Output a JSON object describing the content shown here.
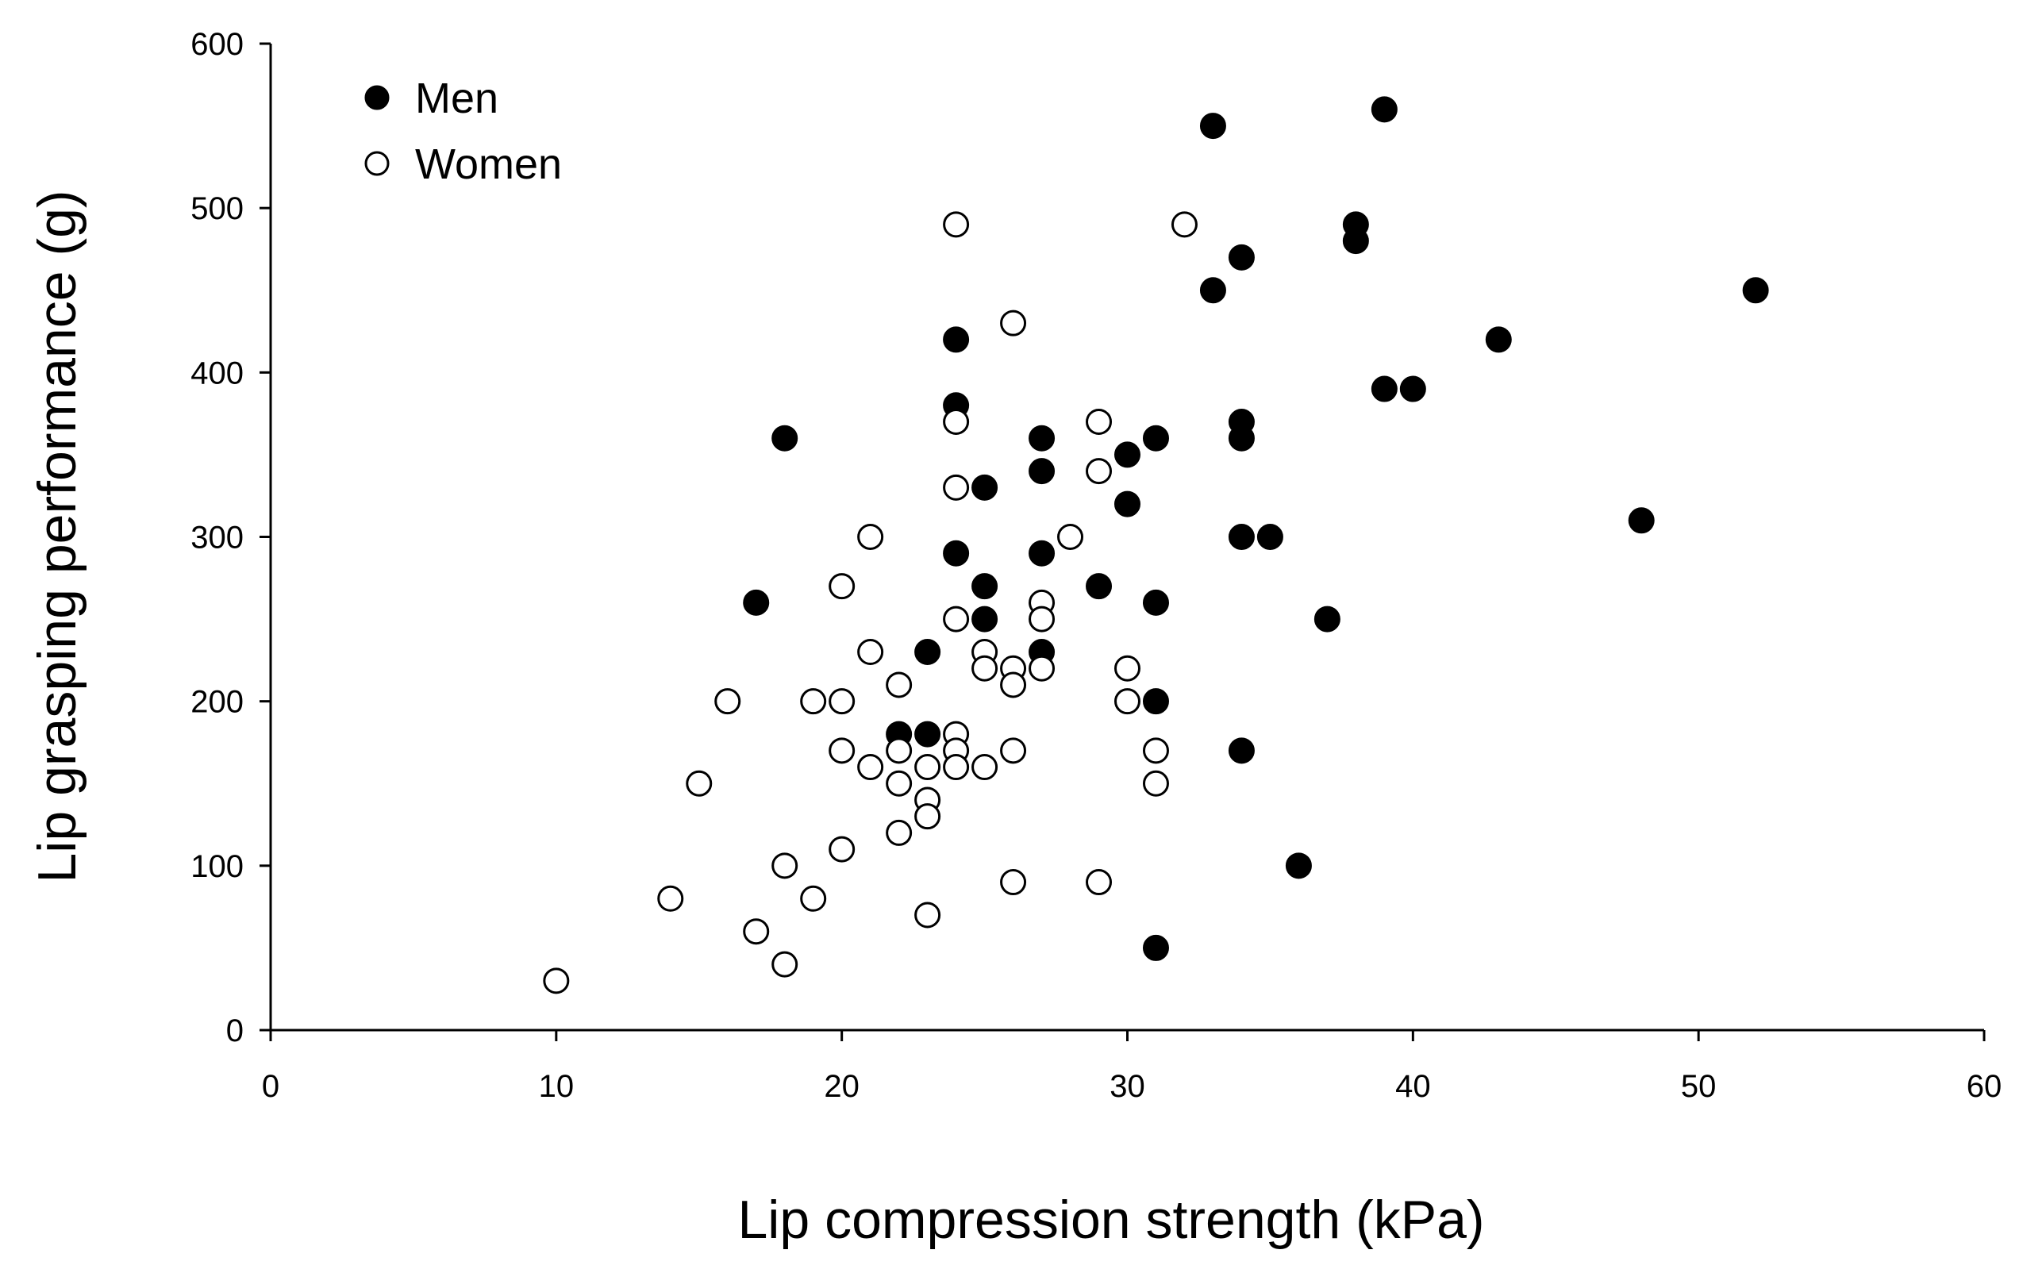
{
  "chart_data": {
    "type": "scatter",
    "title": "",
    "xlabel": "Lip compression strength (kPa)",
    "ylabel": "Lip grasping performance (g)",
    "xlim": [
      0,
      60
    ],
    "ylim": [
      0,
      600
    ],
    "xticks": [
      0,
      10,
      20,
      30,
      40,
      50,
      60
    ],
    "yticks": [
      0,
      100,
      200,
      300,
      400,
      500,
      600
    ],
    "grid": false,
    "legend_position": "top-left",
    "series": [
      {
        "name": "Men",
        "marker": "filled-circle",
        "color": "#000000",
        "points": [
          [
            18,
            360
          ],
          [
            17,
            260
          ],
          [
            22,
            180
          ],
          [
            23,
            180
          ],
          [
            23,
            230
          ],
          [
            24,
            420
          ],
          [
            24,
            380
          ],
          [
            24,
            290
          ],
          [
            25,
            330
          ],
          [
            25,
            270
          ],
          [
            25,
            250
          ],
          [
            27,
            360
          ],
          [
            27,
            340
          ],
          [
            27,
            290
          ],
          [
            27,
            230
          ],
          [
            29,
            270
          ],
          [
            30,
            350
          ],
          [
            30,
            320
          ],
          [
            31,
            360
          ],
          [
            31,
            260
          ],
          [
            31,
            200
          ],
          [
            31,
            50
          ],
          [
            33,
            550
          ],
          [
            33,
            450
          ],
          [
            34,
            470
          ],
          [
            34,
            370
          ],
          [
            34,
            360
          ],
          [
            34,
            300
          ],
          [
            34,
            170
          ],
          [
            35,
            300
          ],
          [
            36,
            100
          ],
          [
            37,
            250
          ],
          [
            38,
            490
          ],
          [
            38,
            480
          ],
          [
            39,
            560
          ],
          [
            39,
            390
          ],
          [
            40,
            390
          ],
          [
            43,
            420
          ],
          [
            48,
            310
          ],
          [
            52,
            450
          ]
        ]
      },
      {
        "name": "Women",
        "marker": "open-circle",
        "color": "#000000",
        "points": [
          [
            10,
            30
          ],
          [
            14,
            80
          ],
          [
            15,
            150
          ],
          [
            16,
            200
          ],
          [
            17,
            60
          ],
          [
            18,
            100
          ],
          [
            18,
            40
          ],
          [
            19,
            200
          ],
          [
            19,
            80
          ],
          [
            20,
            270
          ],
          [
            20,
            200
          ],
          [
            20,
            170
          ],
          [
            20,
            110
          ],
          [
            21,
            300
          ],
          [
            21,
            230
          ],
          [
            21,
            160
          ],
          [
            22,
            210
          ],
          [
            22,
            170
          ],
          [
            22,
            150
          ],
          [
            22,
            120
          ],
          [
            23,
            160
          ],
          [
            23,
            140
          ],
          [
            23,
            130
          ],
          [
            23,
            70
          ],
          [
            24,
            490
          ],
          [
            24,
            370
          ],
          [
            24,
            330
          ],
          [
            24,
            250
          ],
          [
            24,
            180
          ],
          [
            24,
            170
          ],
          [
            24,
            160
          ],
          [
            25,
            230
          ],
          [
            25,
            220
          ],
          [
            25,
            160
          ],
          [
            26,
            430
          ],
          [
            26,
            220
          ],
          [
            26,
            210
          ],
          [
            26,
            170
          ],
          [
            26,
            90
          ],
          [
            27,
            260
          ],
          [
            27,
            250
          ],
          [
            27,
            220
          ],
          [
            28,
            300
          ],
          [
            29,
            370
          ],
          [
            29,
            340
          ],
          [
            29,
            90
          ],
          [
            30,
            220
          ],
          [
            30,
            200
          ],
          [
            31,
            170
          ],
          [
            31,
            150
          ],
          [
            32,
            490
          ]
        ]
      }
    ]
  }
}
